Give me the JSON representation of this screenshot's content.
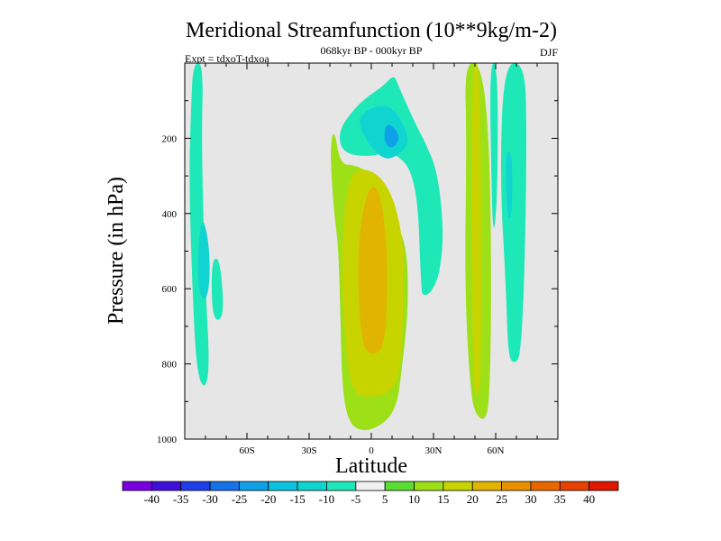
{
  "chart_data": {
    "type": "heatmap",
    "title": "Meridional Streamfunction (10**9kg/m-2)",
    "subtitle": "068kyr BP - 000kyr BP",
    "left_label": "Expt = tdxoT-tdxoa",
    "right_label": "DJF",
    "xlabel": "Latitude",
    "ylabel": "Pressure (in hPa)",
    "xlim": [
      -90,
      90
    ],
    "ylim": [
      0,
      1000
    ],
    "y_reversed": true,
    "x_ticks": [
      -60,
      -30,
      0,
      30,
      60
    ],
    "x_tick_labels": [
      "60S",
      "30S",
      "0",
      "30N",
      "60N"
    ],
    "y_ticks": [
      200,
      400,
      600,
      800,
      1000
    ],
    "y_tick_labels": [
      "200",
      "400",
      "600",
      "800",
      "1000"
    ],
    "background_color": "#e6e6e6",
    "colorbar": {
      "levels": [
        -40,
        -35,
        -30,
        -25,
        -20,
        -15,
        -10,
        -5,
        5,
        10,
        15,
        20,
        25,
        30,
        35,
        40
      ],
      "labels": [
        "-40",
        "-35",
        "-30",
        "-25",
        "-20",
        "-15",
        "-10",
        "-5",
        "5",
        "10",
        "15",
        "20",
        "25",
        "30",
        "35",
        "40"
      ],
      "colors": [
        "#7a00e0",
        "#4010d8",
        "#1f3de8",
        "#1672e8",
        "#10a0e8",
        "#0ac4e0",
        "#10d4d0",
        "#1ee8b8",
        "#f0f0f0",
        "#5adc32",
        "#9ee018",
        "#c8d400",
        "#e0b400",
        "#e89000",
        "#e86800",
        "#e84000",
        "#e01800"
      ]
    },
    "regions": [
      {
        "name": "southern-polar-cell",
        "value": -7,
        "points": [
          [
            -86,
            0
          ],
          [
            -81,
            0
          ],
          [
            -82,
            210
          ],
          [
            -80,
            600
          ],
          [
            -78,
            800
          ],
          [
            -80,
            870
          ],
          [
            -84,
            830
          ],
          [
            -86,
            650
          ],
          [
            -88,
            310
          ],
          [
            -87,
            120
          ]
        ]
      },
      {
        "name": "southern-polar-cell-core",
        "value": -12,
        "points": [
          [
            -81,
            410
          ],
          [
            -78,
            490
          ],
          [
            -78,
            600
          ],
          [
            -81,
            640
          ],
          [
            -84,
            580
          ],
          [
            -83,
            450
          ]
        ]
      },
      {
        "name": "southern-small-cell",
        "value": -7,
        "points": [
          [
            -77,
            520
          ],
          [
            -73,
            520
          ],
          [
            -71,
            660
          ],
          [
            -74,
            690
          ],
          [
            -77,
            660
          ]
        ]
      },
      {
        "name": "tropical-cell-positive",
        "value": 12,
        "points": [
          [
            -18,
            170
          ],
          [
            -15,
            270
          ],
          [
            -8,
            270
          ],
          [
            2,
            300
          ],
          [
            8,
            400
          ],
          [
            17,
            470
          ],
          [
            18,
            650
          ],
          [
            15,
            800
          ],
          [
            12,
            930
          ],
          [
            0,
            980
          ],
          [
            -10,
            970
          ],
          [
            -14,
            880
          ],
          [
            -15,
            650
          ],
          [
            -16,
            480
          ],
          [
            -18,
            400
          ],
          [
            -20,
            230
          ]
        ]
      },
      {
        "name": "tropical-cell-yellow",
        "value": 17,
        "points": [
          [
            -10,
            290
          ],
          [
            -2,
            280
          ],
          [
            6,
            310
          ],
          [
            12,
            380
          ],
          [
            16,
            500
          ],
          [
            15,
            750
          ],
          [
            12,
            870
          ],
          [
            0,
            890
          ],
          [
            -10,
            880
          ],
          [
            -14,
            650
          ],
          [
            -14,
            430
          ]
        ]
      },
      {
        "name": "tropical-cell-core",
        "value": 22,
        "points": [
          [
            -2,
            330
          ],
          [
            4,
            330
          ],
          [
            8,
            500
          ],
          [
            7,
            750
          ],
          [
            1,
            780
          ],
          [
            -5,
            750
          ],
          [
            -7,
            500
          ]
        ]
      },
      {
        "name": "upper-negative-cell",
        "value": -7,
        "points": [
          [
            11,
            30
          ],
          [
            13,
            60
          ],
          [
            22,
            170
          ],
          [
            26,
            210
          ],
          [
            32,
            290
          ],
          [
            35,
            450
          ],
          [
            33,
            560
          ],
          [
            29,
            610
          ],
          [
            25,
            620
          ],
          [
            24,
            600
          ],
          [
            22,
            300
          ],
          [
            10,
            230
          ],
          [
            0,
            250
          ],
          [
            -14,
            240
          ],
          [
            -16,
            180
          ],
          [
            -8,
            120
          ],
          [
            -2,
            90
          ],
          [
            6,
            60
          ]
        ]
      },
      {
        "name": "upper-negative-core",
        "value": -15,
        "points": [
          [
            3,
            110
          ],
          [
            11,
            120
          ],
          [
            17,
            180
          ],
          [
            18,
            220
          ],
          [
            9,
            260
          ],
          [
            2,
            240
          ],
          [
            -5,
            180
          ],
          [
            -6,
            140
          ]
        ]
      },
      {
        "name": "upper-negative-inner",
        "value": -22,
        "points": [
          [
            7,
            160
          ],
          [
            11,
            170
          ],
          [
            14,
            200
          ],
          [
            10,
            230
          ],
          [
            6,
            210
          ]
        ]
      },
      {
        "name": "northern-mid-cell",
        "value": 12,
        "points": [
          [
            45,
            0
          ],
          [
            53,
            0
          ],
          [
            57,
            200
          ],
          [
            58,
            610
          ],
          [
            57,
            900
          ],
          [
            55,
            950
          ],
          [
            51,
            940
          ],
          [
            48,
            890
          ],
          [
            45,
            610
          ],
          [
            46,
            200
          ]
        ]
      },
      {
        "name": "northern-mid-core",
        "value": 18,
        "points": [
          [
            49,
            0
          ],
          [
            52,
            0
          ],
          [
            53,
            300
          ],
          [
            53,
            800
          ],
          [
            52,
            880
          ],
          [
            50,
            880
          ],
          [
            49,
            800
          ],
          [
            48,
            300
          ]
        ]
      },
      {
        "name": "northern-polar-cell",
        "value": -7,
        "points": [
          [
            64,
            0
          ],
          [
            74,
            0
          ],
          [
            75,
            180
          ],
          [
            74,
            560
          ],
          [
            72,
            780
          ],
          [
            69,
            800
          ],
          [
            66,
            780
          ],
          [
            65,
            600
          ],
          [
            62,
            300
          ]
        ]
      },
      {
        "name": "northern-polar-core",
        "value": -12,
        "points": [
          [
            65,
            230
          ],
          [
            68,
            240
          ],
          [
            68,
            400
          ],
          [
            66,
            420
          ],
          [
            65,
            330
          ]
        ]
      },
      {
        "name": "northern-thin-band",
        "value": -7,
        "points": [
          [
            57,
            0
          ],
          [
            61,
            0
          ],
          [
            61,
            340
          ],
          [
            59,
            470
          ],
          [
            58,
            340
          ]
        ]
      }
    ]
  }
}
